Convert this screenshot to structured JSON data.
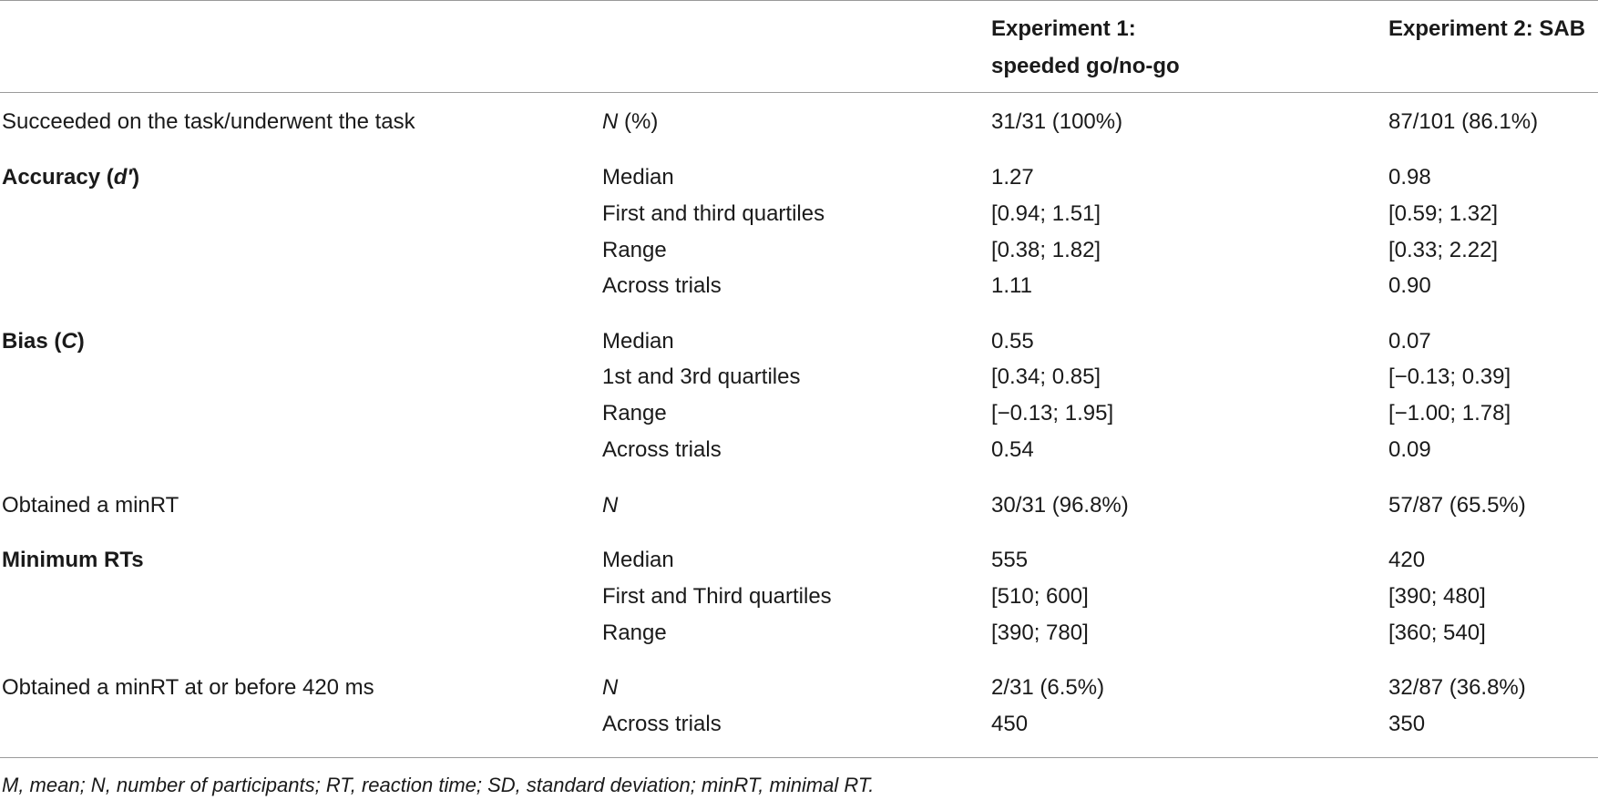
{
  "table": {
    "header": {
      "col3_line1": "Experiment 1:",
      "col3_line2": "speeded go/no-go",
      "col4": "Experiment 2: SAB"
    },
    "rows": [
      {
        "label": "Succeeded on the task/underwent the task",
        "stat_italic": "N",
        "stat_rest": " (%)",
        "exp1": "31/31 (100%)",
        "exp2": "87/101 (86.1%)"
      },
      {
        "label_main": "Accuracy (",
        "label_italic": "d′",
        "label_end": ")",
        "stat": "Median",
        "exp1": "1.27",
        "exp2": "0.98"
      },
      {
        "stat": "First and third quartiles",
        "exp1": "[0.94; 1.51]",
        "exp2": "[0.59; 1.32]"
      },
      {
        "stat": "Range",
        "exp1": "[0.38; 1.82]",
        "exp2": "[0.33; 2.22]"
      },
      {
        "stat": "Across trials",
        "exp1": "1.11",
        "exp2": "0.90"
      },
      {
        "label_main": "Bias (",
        "label_italic": "C",
        "label_end": ")",
        "stat": "Median",
        "exp1": "0.55",
        "exp2": "0.07"
      },
      {
        "stat": "1st and 3rd quartiles",
        "exp1": "[0.34; 0.85]",
        "exp2": "[−0.13; 0.39]"
      },
      {
        "stat": "Range",
        "exp1": "[−0.13; 1.95]",
        "exp2": "[−1.00; 1.78]"
      },
      {
        "stat": "Across trials",
        "exp1": "0.54",
        "exp2": "0.09"
      },
      {
        "label": "Obtained a minRT",
        "stat_italic": "N",
        "exp1": "30/31 (96.8%)",
        "exp2": "57/87 (65.5%)"
      },
      {
        "label_bold": "Minimum RTs",
        "stat": "Median",
        "exp1": "555",
        "exp2": "420"
      },
      {
        "stat": "First and Third quartiles",
        "exp1": "[510; 600]",
        "exp2": "[390; 480]"
      },
      {
        "stat": "Range",
        "exp1": "[390; 780]",
        "exp2": "[360; 540]"
      },
      {
        "label": "Obtained a minRT at or before 420 ms",
        "stat_italic": "N",
        "exp1": "2/31 (6.5%)",
        "exp2": "32/87 (36.8%)"
      },
      {
        "stat": "Across trials",
        "exp1": "450",
        "exp2": "350"
      }
    ]
  },
  "footnote": "M, mean; N, number of participants; RT, reaction time; SD, standard deviation; minRT, minimal RT."
}
